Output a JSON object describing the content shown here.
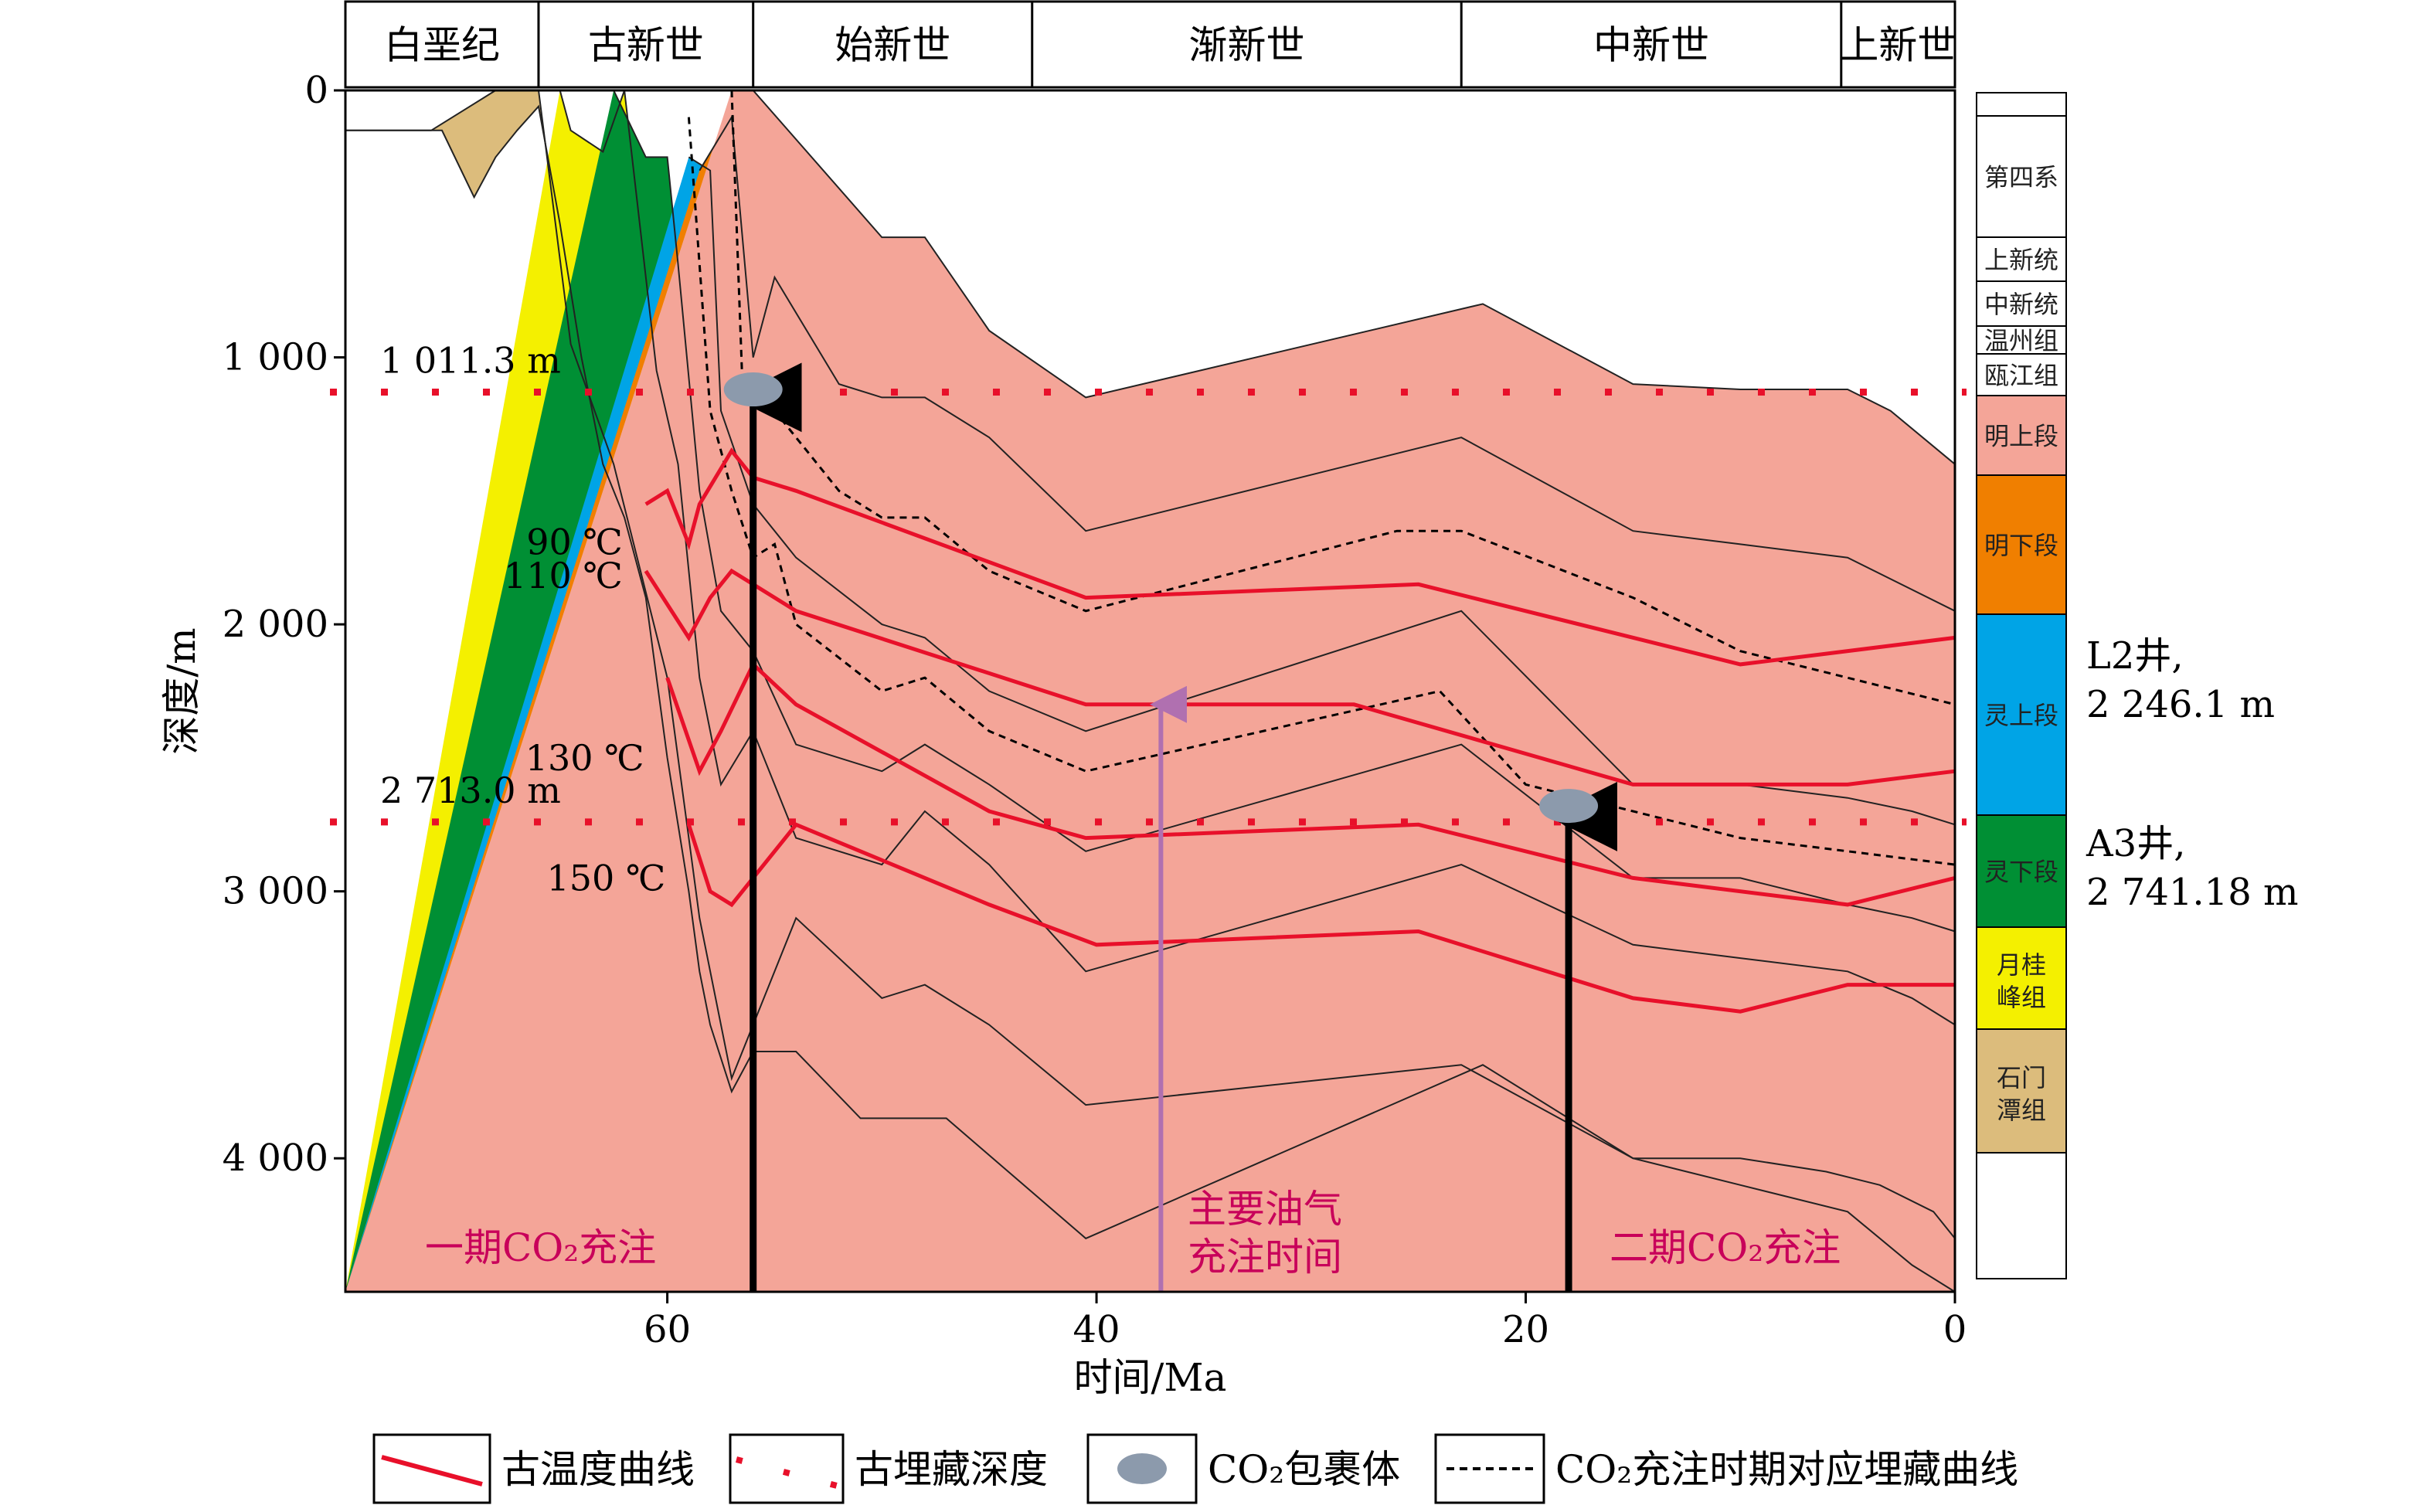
{
  "chart_data": {
    "type": "area",
    "xlabel": "时间/Ma",
    "ylabel": "深度/m",
    "xlim": [
      75,
      0
    ],
    "ylim": [
      0,
      4500
    ],
    "x_ticks": [
      "60",
      "40",
      "20",
      "0"
    ],
    "y_ticks": [
      "0",
      "1 000",
      "2 000",
      "3 000",
      "4 000"
    ],
    "epochs": [
      {
        "label": "白垩纪",
        "from": 75,
        "to": 66
      },
      {
        "label": "古新世",
        "from": 66,
        "to": 56
      },
      {
        "label": "始新世",
        "from": 56,
        "to": 43
      },
      {
        "label": "渐新世",
        "from": 43,
        "to": 23
      },
      {
        "label": "中新世",
        "from": 23,
        "to": 5.3
      },
      {
        "label": "上新世",
        "from": 5.3,
        "to": 0
      }
    ],
    "layers": [
      {
        "name": "石门潭组",
        "color": "#dcbc7c",
        "top": [
          [
            75,
            150
          ],
          [
            71,
            150
          ],
          [
            68,
            0
          ],
          [
            66,
            0
          ],
          [
            64.5,
            950
          ],
          [
            62.5,
            1400
          ],
          [
            60,
            2200
          ],
          [
            58.5,
            3100
          ],
          [
            57,
            3700
          ],
          [
            56,
            3500
          ],
          [
            54,
            3100
          ],
          [
            50,
            3400
          ],
          [
            48,
            3350
          ],
          [
            45,
            3500
          ],
          [
            40.5,
            3800
          ],
          [
            23,
            3650
          ],
          [
            15,
            4000
          ],
          [
            10,
            4000
          ],
          [
            6,
            4050
          ],
          [
            3.5,
            4100
          ],
          [
            1,
            4200
          ],
          [
            0,
            4300
          ]
        ],
        "bottom": [
          [
            75,
            150
          ],
          [
            71,
            150
          ],
          [
            70.5,
            150
          ],
          [
            69,
            400
          ],
          [
            68,
            250
          ],
          [
            67,
            150
          ],
          [
            66,
            60
          ],
          [
            65,
            500
          ],
          [
            64,
            1000
          ],
          [
            63,
            1400
          ],
          [
            62,
            1600
          ],
          [
            61,
            1900
          ],
          [
            60,
            2500
          ],
          [
            59,
            3000
          ],
          [
            58.5,
            3300
          ],
          [
            58,
            3500
          ],
          [
            57,
            3750
          ],
          [
            56,
            3600
          ],
          [
            54,
            3600
          ],
          [
            51,
            3850
          ],
          [
            47,
            3850
          ],
          [
            40.5,
            4300
          ],
          [
            22,
            3650
          ],
          [
            15,
            4000
          ],
          [
            10,
            4100
          ],
          [
            5,
            4200
          ],
          [
            2,
            4400
          ],
          [
            0,
            4500
          ]
        ]
      },
      {
        "name": "月桂峰组",
        "color": "#f4f000",
        "top": [
          [
            65,
            0
          ],
          [
            64.5,
            150
          ],
          [
            63,
            230
          ],
          [
            62,
            0
          ],
          [
            60.5,
            1050
          ],
          [
            59.5,
            1400
          ],
          [
            58.5,
            2200
          ],
          [
            57.5,
            2600
          ],
          [
            56,
            2400
          ],
          [
            54,
            2800
          ],
          [
            50,
            2900
          ],
          [
            48,
            2700
          ],
          [
            45,
            2900
          ],
          [
            40.5,
            3300
          ],
          [
            23,
            2900
          ],
          [
            15,
            3200
          ],
          [
            10,
            3250
          ],
          [
            5,
            3300
          ],
          [
            2,
            3400
          ],
          [
            0,
            3500
          ]
        ]
      },
      {
        "name": "灵下段",
        "color": "#008f34",
        "top": [
          [
            62.5,
            0
          ],
          [
            61,
            250
          ],
          [
            60,
            250
          ],
          [
            59.5,
            650
          ],
          [
            58.5,
            1500
          ],
          [
            57.5,
            1950
          ],
          [
            56,
            2100
          ],
          [
            54,
            2450
          ],
          [
            50,
            2550
          ],
          [
            48,
            2450
          ],
          [
            45,
            2600
          ],
          [
            40.5,
            2850
          ],
          [
            23,
            2450
          ],
          [
            15,
            2950
          ],
          [
            10,
            2950
          ],
          [
            5,
            3050
          ],
          [
            2,
            3100
          ],
          [
            0,
            3150
          ]
        ]
      },
      {
        "name": "灵上段",
        "color": "#00a4e6",
        "top": [
          [
            59,
            250
          ],
          [
            58,
            300
          ],
          [
            57.5,
            1200
          ],
          [
            56,
            1550
          ],
          [
            54,
            1750
          ],
          [
            50,
            2000
          ],
          [
            48,
            2050
          ],
          [
            45,
            2250
          ],
          [
            40.5,
            2400
          ],
          [
            23,
            1950
          ],
          [
            15,
            2600
          ],
          [
            10,
            2600
          ],
          [
            5,
            2650
          ],
          [
            2,
            2700
          ],
          [
            0,
            2750
          ]
        ]
      },
      {
        "name": "明下段",
        "color": "#f07f00",
        "top": [
          [
            58.5,
            300
          ],
          [
            57,
            100
          ],
          [
            56,
            1000
          ],
          [
            55,
            700
          ],
          [
            52,
            1100
          ],
          [
            50,
            1150
          ],
          [
            48,
            1150
          ],
          [
            45,
            1300
          ],
          [
            40.5,
            1650
          ],
          [
            23,
            1300
          ],
          [
            15,
            1650
          ],
          [
            10,
            1700
          ],
          [
            5,
            1750
          ],
          [
            0,
            1950
          ]
        ]
      },
      {
        "name": "明上段",
        "color": "#f4a598",
        "top": [
          [
            57,
            0
          ],
          [
            56,
            0
          ],
          [
            50,
            550
          ],
          [
            48,
            550
          ],
          [
            45,
            900
          ],
          [
            40.5,
            1150
          ],
          [
            22,
            800
          ],
          [
            15,
            1100
          ],
          [
            10,
            1120
          ],
          [
            5,
            1120
          ],
          [
            3,
            1200
          ],
          [
            0,
            1400
          ]
        ]
      }
    ],
    "temperature_curves": [
      {
        "name": "90 ℃",
        "points": [
          [
            61,
            1550
          ],
          [
            60,
            1500
          ],
          [
            59,
            1700
          ],
          [
            58.5,
            1550
          ],
          [
            57,
            1350
          ],
          [
            56,
            1450
          ],
          [
            54,
            1500
          ],
          [
            40.5,
            1900
          ],
          [
            25,
            1850
          ],
          [
            10,
            2150
          ],
          [
            0,
            2050
          ]
        ]
      },
      {
        "name": "110 ℃",
        "points": [
          [
            61,
            1800
          ],
          [
            59,
            2050
          ],
          [
            58,
            1900
          ],
          [
            57,
            1800
          ],
          [
            56,
            1850
          ],
          [
            54,
            1950
          ],
          [
            40.5,
            2300
          ],
          [
            28,
            2300
          ],
          [
            15,
            2600
          ],
          [
            5,
            2600
          ],
          [
            0,
            2550
          ]
        ]
      },
      {
        "name": "130 ℃",
        "points": [
          [
            60,
            2200
          ],
          [
            58.5,
            2550
          ],
          [
            57.5,
            2400
          ],
          [
            56,
            2150
          ],
          [
            54,
            2300
          ],
          [
            45,
            2700
          ],
          [
            40.5,
            2800
          ],
          [
            25,
            2750
          ],
          [
            15,
            2950
          ],
          [
            5,
            3050
          ],
          [
            0,
            2950
          ]
        ]
      },
      {
        "name": "150 ℃",
        "points": [
          [
            59,
            2750
          ],
          [
            58,
            3000
          ],
          [
            57,
            3050
          ],
          [
            54,
            2750
          ],
          [
            45,
            3050
          ],
          [
            40,
            3200
          ],
          [
            25,
            3150
          ],
          [
            15,
            3400
          ],
          [
            10,
            3450
          ],
          [
            5,
            3350
          ],
          [
            0,
            3350
          ]
        ]
      }
    ],
    "co2_burial_curve": [
      [
        59,
        100
      ],
      [
        58,
        1200
      ],
      [
        57,
        1500
      ],
      [
        56,
        1750
      ],
      [
        55,
        1700
      ],
      [
        54,
        2000
      ],
      [
        50,
        2250
      ],
      [
        48,
        2200
      ],
      [
        45,
        2400
      ],
      [
        40.5,
        2550
      ],
      [
        24,
        2250
      ],
      [
        20,
        2600
      ],
      [
        15,
        2700
      ],
      [
        10,
        2800
      ],
      [
        5,
        2850
      ],
      [
        0,
        2900
      ]
    ],
    "co2_burial_curve_upper": [
      [
        57,
        0
      ],
      [
        56.5,
        1100
      ],
      [
        55,
        1200
      ],
      [
        52,
        1500
      ],
      [
        50,
        1600
      ],
      [
        48,
        1600
      ],
      [
        45,
        1800
      ],
      [
        40.5,
        1950
      ],
      [
        26,
        1650
      ],
      [
        23,
        1650
      ],
      [
        15,
        1900
      ],
      [
        10,
        2100
      ],
      [
        5,
        2200
      ],
      [
        0,
        2300
      ]
    ],
    "reference_depths": [
      {
        "label": "1 011.3 m",
        "depth": 1130
      },
      {
        "label": "2 713.0 m",
        "depth": 2740
      }
    ],
    "co2_inclusions": [
      {
        "age": 56,
        "depth": 1120
      },
      {
        "age": 18,
        "depth": 2680
      }
    ],
    "events": [
      {
        "label_lines": [
          "一期CO₂充注"
        ],
        "age": 56,
        "color": "#000000",
        "text_color": "#c8005a"
      },
      {
        "label_lines": [
          "主要油气",
          "充注时间"
        ],
        "age": 37,
        "color": "#b070b0",
        "text_color": "#c8005a"
      },
      {
        "label_lines": [
          "二期CO₂充注"
        ],
        "age": 18,
        "color": "#000000",
        "text_color": "#c8005a"
      }
    ],
    "wells": [
      {
        "lines": [
          "L2井,",
          "2 246.1 m"
        ]
      },
      {
        "lines": [
          "A3井,",
          "2 741.18 m"
        ]
      }
    ],
    "strat_column": [
      {
        "label": "",
        "color": "#ffffff"
      },
      {
        "label": "第四系",
        "color": "#ffffff"
      },
      {
        "label": "上新统",
        "color": "#ffffff"
      },
      {
        "label": "中新统",
        "color": "#ffffff"
      },
      {
        "label": "温州组",
        "color": "#ffffff"
      },
      {
        "label": "瓯江组",
        "color": "#ffffff"
      },
      {
        "label": "明上段",
        "color": "#f4a598"
      },
      {
        "label": "明下段",
        "color": "#f07f00"
      },
      {
        "label": "灵上段",
        "color": "#00a4e6"
      },
      {
        "label": "灵下段",
        "color": "#008f34"
      },
      {
        "label": "月桂峰组",
        "color": "#f4f000"
      },
      {
        "label": "石门潭组",
        "color": "#dcbc7c"
      },
      {
        "label": "",
        "color": "#ffffff"
      }
    ],
    "legend": [
      {
        "label": "古温度曲线",
        "kind": "red-line"
      },
      {
        "label": "古埋藏深度",
        "kind": "red-dots"
      },
      {
        "label": "CO₂包裹体",
        "kind": "ellipse"
      },
      {
        "label": "CO₂充注时期对应埋藏曲线",
        "kind": "dashed"
      }
    ],
    "colors": {
      "temperature": "#e8102a",
      "burial_dots": "#e8102a",
      "inclusion": "#8c9aac",
      "event_text": "#c8005a"
    }
  }
}
